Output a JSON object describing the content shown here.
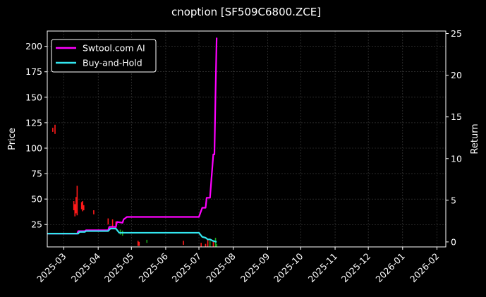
{
  "chart_data": {
    "type": "line",
    "title": "cnoption [SF509C6800.ZCE]",
    "xlabel": "",
    "ylabel": "Price",
    "y2label": "Return",
    "x_ticks": [
      "2025-03",
      "2025-04",
      "2025-05",
      "2025-06",
      "2025-07",
      "2025-08",
      "2025-09",
      "2025-10",
      "2025-11",
      "2025-12",
      "2026-01",
      "2026-02"
    ],
    "xlim": [
      "2025-02-14",
      "2026-02-09"
    ],
    "ylim": [
      3,
      215
    ],
    "y_ticks": [
      25,
      50,
      75,
      100,
      125,
      150,
      175,
      200
    ],
    "y2lim": [
      -0.6,
      25.3
    ],
    "y2_ticks": [
      0,
      5,
      10,
      15,
      20,
      25
    ],
    "grid": true,
    "legend_position": "top-left",
    "colors": {
      "background": "#000000",
      "ai_line": "#ff00ff",
      "hold_line": "#33e6f0",
      "candle_down": "#ff1a1a",
      "candle_up": "#1aa31a",
      "grid": "#444444"
    },
    "series": [
      {
        "name": "Swtool.com AI",
        "axis": "return",
        "x": [
          "2025-02-14",
          "2025-03-13",
          "2025-03-14",
          "2025-03-20",
          "2025-03-21",
          "2025-04-10",
          "2025-04-11",
          "2025-04-17",
          "2025-04-18",
          "2025-04-23",
          "2025-04-24",
          "2025-04-27",
          "2025-05-05",
          "2025-07-01",
          "2025-07-04",
          "2025-07-07",
          "2025-07-08",
          "2025-07-11",
          "2025-07-14",
          "2025-07-15",
          "2025-07-16",
          "2025-07-17"
        ],
        "values": [
          1.0,
          1.0,
          1.3,
          1.3,
          1.4,
          1.4,
          1.8,
          1.8,
          2.4,
          2.3,
          2.7,
          3.0,
          3.0,
          3.0,
          4.1,
          4.1,
          5.3,
          5.3,
          10.5,
          10.5,
          17.9,
          24.5
        ]
      },
      {
        "name": "Buy-and-Hold",
        "axis": "return",
        "x": [
          "2025-02-14",
          "2025-03-14",
          "2025-03-15",
          "2025-03-20",
          "2025-03-21",
          "2025-04-10",
          "2025-04-12",
          "2025-04-17",
          "2025-04-20",
          "2025-04-24",
          "2025-07-01",
          "2025-07-04",
          "2025-07-07",
          "2025-07-09",
          "2025-07-11",
          "2025-07-14",
          "2025-07-17"
        ],
        "values": [
          1.0,
          1.0,
          1.2,
          1.2,
          1.3,
          1.3,
          1.6,
          1.6,
          1.1,
          1.1,
          1.1,
          0.6,
          0.5,
          0.3,
          0.3,
          0.1,
          0.0
        ]
      }
    ],
    "candles": [
      {
        "x": "2025-02-19",
        "low": 116,
        "high": 120,
        "dir": "down"
      },
      {
        "x": "2025-02-21",
        "low": 114,
        "high": 123,
        "dir": "down"
      },
      {
        "x": "2025-03-10",
        "low": 39,
        "high": 48,
        "dir": "down"
      },
      {
        "x": "2025-03-11",
        "low": 33,
        "high": 45,
        "dir": "down"
      },
      {
        "x": "2025-03-12",
        "low": 36,
        "high": 52,
        "dir": "down"
      },
      {
        "x": "2025-03-13",
        "low": 34,
        "high": 63,
        "dir": "down"
      },
      {
        "x": "2025-03-17",
        "low": 40,
        "high": 47,
        "dir": "down"
      },
      {
        "x": "2025-03-18",
        "low": 38,
        "high": 48,
        "dir": "down"
      },
      {
        "x": "2025-03-19",
        "low": 39,
        "high": 44,
        "dir": "down"
      },
      {
        "x": "2025-03-28",
        "low": 35,
        "high": 39,
        "dir": "down"
      },
      {
        "x": "2025-04-10",
        "low": 25,
        "high": 31,
        "dir": "down"
      },
      {
        "x": "2025-04-14",
        "low": 23,
        "high": 30,
        "dir": "down"
      },
      {
        "x": "2025-04-17",
        "low": 20,
        "high": 28,
        "dir": "down"
      },
      {
        "x": "2025-04-21",
        "low": 15,
        "high": 20,
        "dir": "up"
      },
      {
        "x": "2025-04-23",
        "low": 14,
        "high": 19,
        "dir": "up"
      },
      {
        "x": "2025-05-07",
        "low": 4,
        "high": 9,
        "dir": "down"
      },
      {
        "x": "2025-05-08",
        "low": 4,
        "high": 8,
        "dir": "down"
      },
      {
        "x": "2025-05-15",
        "low": 7,
        "high": 10,
        "dir": "up"
      },
      {
        "x": "2025-06-17",
        "low": 5,
        "high": 9,
        "dir": "down"
      },
      {
        "x": "2025-07-03",
        "low": 3,
        "high": 7,
        "dir": "down"
      },
      {
        "x": "2025-07-07",
        "low": 3,
        "high": 6,
        "dir": "down"
      },
      {
        "x": "2025-07-09",
        "low": 3,
        "high": 11,
        "dir": "down"
      },
      {
        "x": "2025-07-11",
        "low": 3,
        "high": 9,
        "dir": "up"
      },
      {
        "x": "2025-07-14",
        "low": 3,
        "high": 8,
        "dir": "down"
      },
      {
        "x": "2025-07-16",
        "low": 3,
        "high": 12,
        "dir": "up"
      },
      {
        "x": "2025-07-17",
        "low": 3,
        "high": 6,
        "dir": "up"
      }
    ]
  }
}
